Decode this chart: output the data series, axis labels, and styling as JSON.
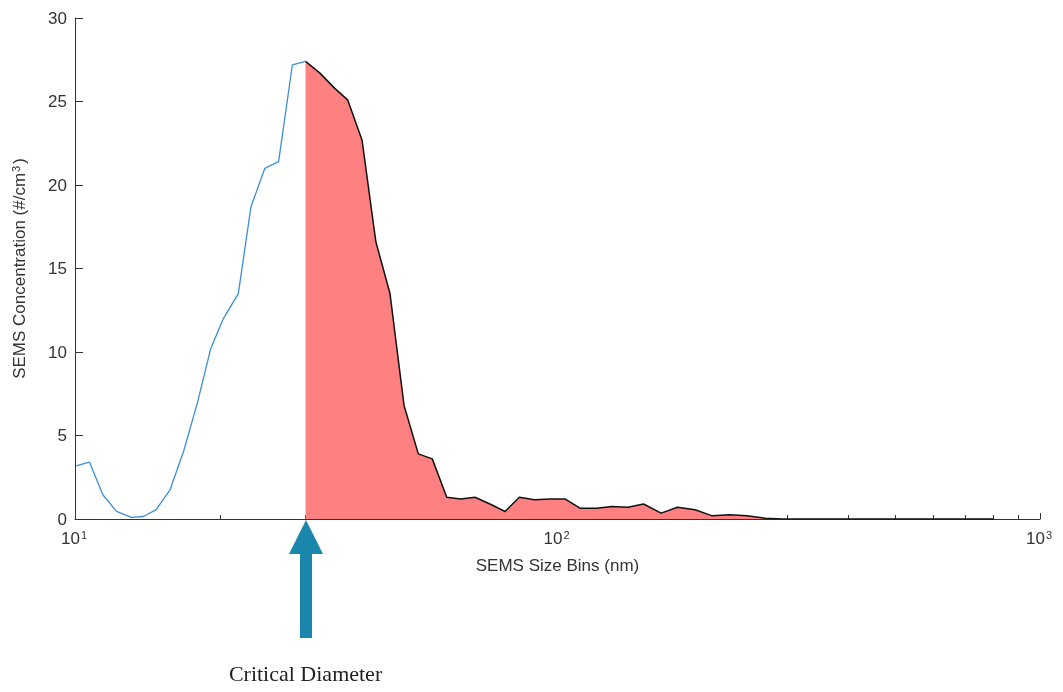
{
  "chart_data": {
    "type": "line",
    "xlabel": "SEMS Size Bins (nm)",
    "ylabel": "SEMS Concentration (#/cm$^{3}$)",
    "log": "x",
    "xlim": [
      10,
      1000
    ],
    "xticks": [
      {
        "value": 10,
        "label": "10$^{1}$"
      },
      {
        "value": 100,
        "label": "10$^{2}$"
      },
      {
        "value": 1000,
        "label": "10$^{3}$"
      }
    ],
    "ylim": [
      0,
      30
    ],
    "yticks": [
      0,
      5,
      10,
      15,
      20,
      25,
      30
    ],
    "grid": false,
    "marker": "none",
    "line_style": "solid",
    "annotations": [
      "Critical Diameter"
    ],
    "series": [
      {
        "type": "line",
        "color": "#3c8ed8",
        "x": [
          10.09,
          10.72,
          11.42,
          12.19,
          13.09,
          13.86,
          14.73,
          15.74,
          16.81,
          17.95,
          19.11,
          20.3,
          21.8,
          23.16,
          24.74,
          26.42,
          28.22,
          30.05
        ],
        "values": [
          3.2,
          3.4,
          1.45,
          0.46,
          0.1,
          0.15,
          0.56,
          1.75,
          4.1,
          7.0,
          10.2,
          12.0,
          13.5,
          18.7,
          21.0,
          21.4,
          27.2,
          27.4
        ]
      },
      {
        "type": "area",
        "color": "#ff8080",
        "x": [
          30.05,
          32.19,
          34.5,
          36.73,
          39.34,
          42.03,
          44.96,
          48.08,
          51.47,
          55.02,
          58.94,
          63.03,
          67.45,
          72.45,
          77.86,
          83.34,
          89.51,
          96.8,
          103.6,
          111.3,
          120.6,
          129.5,
          140.0,
          150.8,
          163.9,
          177.3,
          192.8,
          208.7,
          227.8,
          247.1,
          269.2,
          292,
          318,
          367,
          444,
          538,
          651,
          799
        ],
        "values": [
          27.4,
          26.7,
          25.8,
          25.1,
          22.7,
          16.6,
          13.5,
          6.8,
          3.9,
          3.6,
          1.3,
          1.2,
          1.3,
          0.9,
          0.45,
          1.3,
          1.15,
          1.2,
          1.2,
          0.65,
          0.65,
          0.75,
          0.7,
          0.9,
          0.35,
          0.7,
          0.55,
          0.2,
          0.25,
          0.2,
          0.05,
          0,
          0,
          0,
          0,
          0,
          0,
          0
        ]
      }
    ]
  }
}
